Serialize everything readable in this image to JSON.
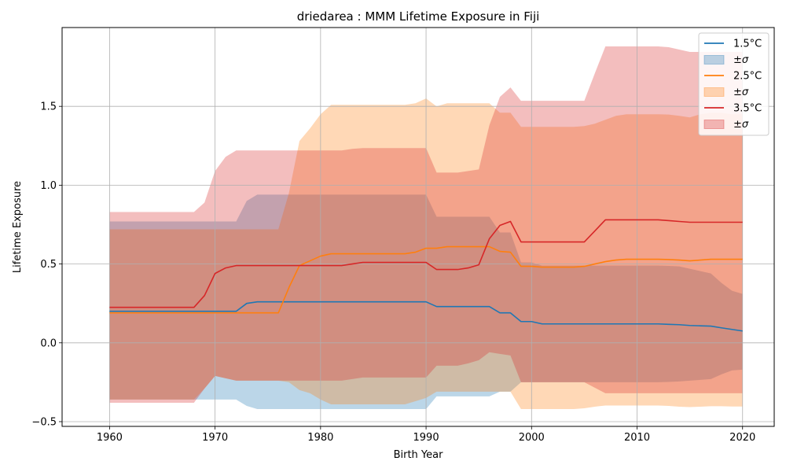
{
  "chart_data": {
    "type": "line",
    "title": "driedarea : MMM Lifetime Exposure in Fiji",
    "xlabel": "Birth Year",
    "ylabel": "Lifetime Exposure",
    "xlim": [
      1955.5,
      2023
    ],
    "ylim": [
      -0.53,
      2.0
    ],
    "xticks": [
      1960,
      1970,
      1980,
      1990,
      2000,
      2010,
      2020
    ],
    "yticks": [
      -0.5,
      0.0,
      0.5,
      1.0,
      1.5
    ],
    "ytick_labels": [
      "−0.5",
      "0.0",
      "0.5",
      "1.0",
      "1.5"
    ],
    "grid": true,
    "legend_position": "top-right",
    "x": [
      1960,
      1961,
      1962,
      1963,
      1964,
      1965,
      1966,
      1967,
      1968,
      1969,
      1970,
      1971,
      1972,
      1973,
      1974,
      1975,
      1976,
      1977,
      1978,
      1979,
      1980,
      1981,
      1982,
      1983,
      1984,
      1985,
      1986,
      1987,
      1988,
      1989,
      1990,
      1991,
      1992,
      1993,
      1994,
      1995,
      1996,
      1997,
      1998,
      1999,
      2000,
      2001,
      2002,
      2003,
      2004,
      2005,
      2006,
      2007,
      2008,
      2009,
      2010,
      2011,
      2012,
      2013,
      2014,
      2015,
      2016,
      2017,
      2018,
      2019,
      2020
    ],
    "series": [
      {
        "name": "1.5°C",
        "band_name": "±σ",
        "color": "#1f77b4",
        "band_color": "#1f77b4",
        "mean": [
          0.2,
          0.2,
          0.2,
          0.2,
          0.2,
          0.2,
          0.2,
          0.2,
          0.2,
          0.2,
          0.2,
          0.2,
          0.2,
          0.25,
          0.26,
          0.26,
          0.26,
          0.26,
          0.26,
          0.26,
          0.26,
          0.26,
          0.26,
          0.26,
          0.26,
          0.26,
          0.26,
          0.26,
          0.26,
          0.26,
          0.26,
          0.23,
          0.23,
          0.23,
          0.23,
          0.23,
          0.23,
          0.19,
          0.19,
          0.135,
          0.135,
          0.12,
          0.12,
          0.12,
          0.12,
          0.12,
          0.12,
          0.12,
          0.12,
          0.12,
          0.12,
          0.12,
          0.12,
          0.117,
          0.115,
          0.11,
          0.108,
          0.106,
          0.095,
          0.085,
          0.075
        ],
        "upper": [
          0.77,
          0.77,
          0.77,
          0.77,
          0.77,
          0.77,
          0.77,
          0.77,
          0.77,
          0.77,
          0.77,
          0.77,
          0.77,
          0.9,
          0.94,
          0.94,
          0.94,
          0.94,
          0.94,
          0.94,
          0.94,
          0.94,
          0.94,
          0.94,
          0.94,
          0.94,
          0.94,
          0.94,
          0.94,
          0.94,
          0.94,
          0.8,
          0.8,
          0.8,
          0.8,
          0.8,
          0.8,
          0.7,
          0.7,
          0.51,
          0.51,
          0.49,
          0.49,
          0.49,
          0.49,
          0.49,
          0.49,
          0.49,
          0.49,
          0.49,
          0.49,
          0.49,
          0.49,
          0.488,
          0.485,
          0.47,
          0.455,
          0.44,
          0.38,
          0.33,
          0.31
        ],
        "lower": [
          -0.36,
          -0.36,
          -0.36,
          -0.36,
          -0.36,
          -0.36,
          -0.36,
          -0.36,
          -0.36,
          -0.36,
          -0.36,
          -0.36,
          -0.36,
          -0.4,
          -0.42,
          -0.42,
          -0.42,
          -0.42,
          -0.42,
          -0.42,
          -0.42,
          -0.42,
          -0.42,
          -0.42,
          -0.42,
          -0.42,
          -0.42,
          -0.42,
          -0.42,
          -0.42,
          -0.42,
          -0.34,
          -0.34,
          -0.34,
          -0.34,
          -0.34,
          -0.34,
          -0.31,
          -0.31,
          -0.25,
          -0.25,
          -0.25,
          -0.25,
          -0.25,
          -0.25,
          -0.25,
          -0.25,
          -0.25,
          -0.25,
          -0.25,
          -0.25,
          -0.25,
          -0.25,
          -0.248,
          -0.245,
          -0.24,
          -0.235,
          -0.23,
          -0.2,
          -0.175,
          -0.17
        ]
      },
      {
        "name": "2.5°C",
        "band_name": "±σ",
        "color": "#ff7f0e",
        "band_color": "#ff7f0e",
        "mean": [
          0.19,
          0.19,
          0.19,
          0.19,
          0.19,
          0.19,
          0.19,
          0.19,
          0.19,
          0.19,
          0.19,
          0.19,
          0.19,
          0.19,
          0.19,
          0.19,
          0.19,
          0.35,
          0.49,
          0.52,
          0.55,
          0.565,
          0.565,
          0.565,
          0.565,
          0.565,
          0.565,
          0.565,
          0.565,
          0.575,
          0.6,
          0.6,
          0.61,
          0.61,
          0.61,
          0.61,
          0.61,
          0.58,
          0.575,
          0.485,
          0.485,
          0.48,
          0.48,
          0.48,
          0.48,
          0.485,
          0.5,
          0.515,
          0.525,
          0.53,
          0.53,
          0.53,
          0.53,
          0.528,
          0.525,
          0.52,
          0.525,
          0.53,
          0.53,
          0.53,
          0.53
        ],
        "upper": [
          0.72,
          0.72,
          0.72,
          0.72,
          0.72,
          0.72,
          0.72,
          0.72,
          0.72,
          0.72,
          0.72,
          0.72,
          0.72,
          0.72,
          0.72,
          0.72,
          0.72,
          0.95,
          1.28,
          1.36,
          1.45,
          1.51,
          1.51,
          1.51,
          1.51,
          1.51,
          1.51,
          1.51,
          1.51,
          1.52,
          1.55,
          1.5,
          1.52,
          1.52,
          1.52,
          1.52,
          1.52,
          1.46,
          1.46,
          1.37,
          1.37,
          1.37,
          1.37,
          1.37,
          1.37,
          1.375,
          1.39,
          1.415,
          1.44,
          1.45,
          1.45,
          1.45,
          1.45,
          1.448,
          1.44,
          1.43,
          1.45,
          1.46,
          1.46,
          1.45,
          1.45
        ],
        "lower": [
          -0.36,
          -0.36,
          -0.36,
          -0.36,
          -0.36,
          -0.36,
          -0.36,
          -0.36,
          -0.36,
          -0.29,
          -0.21,
          -0.225,
          -0.24,
          -0.24,
          -0.24,
          -0.24,
          -0.24,
          -0.25,
          -0.3,
          -0.32,
          -0.36,
          -0.39,
          -0.39,
          -0.39,
          -0.39,
          -0.39,
          -0.39,
          -0.39,
          -0.39,
          -0.37,
          -0.35,
          -0.31,
          -0.31,
          -0.31,
          -0.31,
          -0.31,
          -0.31,
          -0.31,
          -0.31,
          -0.42,
          -0.42,
          -0.42,
          -0.42,
          -0.42,
          -0.42,
          -0.415,
          -0.405,
          -0.398,
          -0.398,
          -0.398,
          -0.398,
          -0.398,
          -0.398,
          -0.4,
          -0.405,
          -0.408,
          -0.405,
          -0.402,
          -0.402,
          -0.404,
          -0.404
        ]
      },
      {
        "name": "3.5°C",
        "band_name": "±σ",
        "color": "#d62728",
        "band_color": "#d62728",
        "mean": [
          0.225,
          0.225,
          0.225,
          0.225,
          0.225,
          0.225,
          0.225,
          0.225,
          0.225,
          0.3,
          0.44,
          0.475,
          0.49,
          0.49,
          0.49,
          0.49,
          0.49,
          0.49,
          0.49,
          0.49,
          0.49,
          0.49,
          0.49,
          0.5,
          0.51,
          0.51,
          0.51,
          0.51,
          0.51,
          0.51,
          0.51,
          0.465,
          0.465,
          0.465,
          0.475,
          0.495,
          0.66,
          0.745,
          0.77,
          0.64,
          0.64,
          0.64,
          0.64,
          0.64,
          0.64,
          0.64,
          0.71,
          0.78,
          0.78,
          0.78,
          0.78,
          0.78,
          0.78,
          0.775,
          0.77,
          0.765,
          0.765,
          0.765,
          0.765,
          0.765,
          0.765
        ],
        "upper": [
          0.83,
          0.83,
          0.83,
          0.83,
          0.83,
          0.83,
          0.83,
          0.83,
          0.83,
          0.89,
          1.09,
          1.18,
          1.22,
          1.22,
          1.22,
          1.22,
          1.22,
          1.22,
          1.22,
          1.22,
          1.22,
          1.22,
          1.22,
          1.23,
          1.235,
          1.235,
          1.235,
          1.235,
          1.235,
          1.235,
          1.235,
          1.08,
          1.08,
          1.08,
          1.09,
          1.1,
          1.38,
          1.56,
          1.62,
          1.535,
          1.535,
          1.535,
          1.535,
          1.535,
          1.535,
          1.535,
          1.71,
          1.88,
          1.88,
          1.88,
          1.88,
          1.88,
          1.88,
          1.875,
          1.86,
          1.845,
          1.845,
          1.845,
          1.845,
          1.845,
          1.845
        ],
        "lower": [
          -0.38,
          -0.38,
          -0.38,
          -0.38,
          -0.38,
          -0.38,
          -0.38,
          -0.38,
          -0.38,
          -0.29,
          -0.21,
          -0.225,
          -0.24,
          -0.24,
          -0.24,
          -0.24,
          -0.24,
          -0.24,
          -0.24,
          -0.24,
          -0.24,
          -0.24,
          -0.24,
          -0.23,
          -0.22,
          -0.22,
          -0.22,
          -0.22,
          -0.22,
          -0.22,
          -0.22,
          -0.145,
          -0.145,
          -0.145,
          -0.13,
          -0.11,
          -0.06,
          -0.07,
          -0.08,
          -0.25,
          -0.25,
          -0.25,
          -0.25,
          -0.25,
          -0.25,
          -0.25,
          -0.285,
          -0.32,
          -0.32,
          -0.32,
          -0.32,
          -0.32,
          -0.32,
          -0.32,
          -0.32,
          -0.32,
          -0.32,
          -0.32,
          -0.32,
          -0.32,
          -0.32
        ]
      }
    ]
  }
}
